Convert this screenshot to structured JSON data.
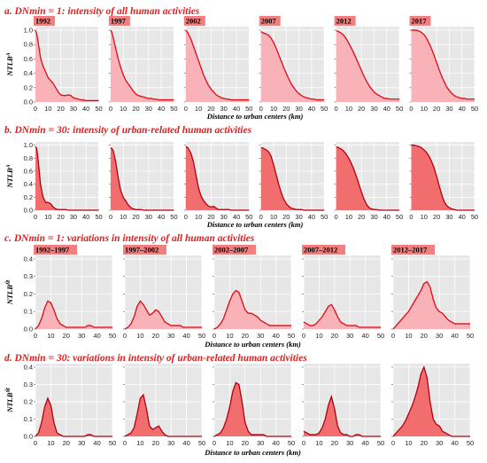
{
  "colors": {
    "accent": "#e0201f",
    "tag_bg": "#f08080",
    "light_fill": "#f9b3b8",
    "dark_fill": "#f26d6d",
    "line": "#dd0a14",
    "dark_line": "#b00010",
    "panel_bg": "#e7e7e7"
  },
  "sections": [
    {
      "title": "a. DNmin = 1: intensity of all human activities",
      "ylabel_main": "NTLB",
      "ylabel_sub": "A",
      "xlabel": "Distance to urban centers (km)",
      "fill": "light",
      "y_ticks": [
        "1.0",
        "0.8",
        "0.6",
        "0.4",
        "0.2",
        "0.0"
      ],
      "x_ticks": [
        "0",
        "10",
        "20",
        "30",
        "40",
        "50"
      ]
    },
    {
      "title": "b. DNmin = 30: intensity of urban-related human activities",
      "ylabel_main": "NTLB",
      "ylabel_sub": "A",
      "xlabel": "Distance to urban centers (km)",
      "fill": "dark",
      "y_ticks": [
        "1.0",
        "0.8",
        "0.6",
        "0.4",
        "0.2",
        "0.0"
      ],
      "x_ticks": [
        "0",
        "10",
        "20",
        "30",
        "40",
        "50"
      ]
    },
    {
      "title": "c. DNmin = 1: variations in intensity of all human activities",
      "ylabel_main": "NTLB",
      "ylabel_sub": "M̃",
      "xlabel": "Distance to urban centers (km)",
      "fill": "light",
      "y_ticks": [
        "0.4",
        "0.3",
        "0.2",
        "0.1",
        "0.0"
      ],
      "x_ticks": [
        "0",
        "10",
        "20",
        "30",
        "40",
        "50"
      ]
    },
    {
      "title": "d. DNmin = 30: variations in intensity of urban-related human activities",
      "ylabel_main": "NTLB",
      "ylabel_sub": "M̃",
      "xlabel": "Distance to urban centers (km)",
      "fill": "dark",
      "y_ticks": [
        "0.4",
        "0.3",
        "0.2",
        "0.1",
        "0.0"
      ],
      "x_ticks": [
        "0",
        "10",
        "20",
        "30",
        "40",
        "50"
      ]
    }
  ],
  "chart_data": [
    {
      "type": "area",
      "section": 0,
      "xlim": [
        0,
        50
      ],
      "ylim": [
        0,
        1.05
      ],
      "x": [
        0,
        1,
        2,
        4,
        6,
        8,
        10,
        12,
        14,
        16,
        18,
        20,
        22,
        24,
        26,
        28,
        30,
        32,
        34,
        36,
        38,
        40,
        42,
        44,
        46,
        48,
        50
      ],
      "series": [
        {
          "name": "1992",
          "values": [
            1.0,
            0.95,
            0.85,
            0.62,
            0.5,
            0.42,
            0.34,
            0.3,
            0.26,
            0.2,
            0.14,
            0.1,
            0.09,
            0.09,
            0.1,
            0.09,
            0.06,
            0.05,
            0.04,
            0.03,
            0.03,
            0.02,
            0.02,
            0.02,
            0.02,
            0.02,
            0.02
          ]
        },
        {
          "name": "1997",
          "values": [
            1.0,
            0.97,
            0.9,
            0.75,
            0.6,
            0.48,
            0.38,
            0.3,
            0.25,
            0.2,
            0.15,
            0.11,
            0.09,
            0.08,
            0.07,
            0.06,
            0.05,
            0.05,
            0.04,
            0.04,
            0.03,
            0.03,
            0.03,
            0.03,
            0.03,
            0.03,
            0.03
          ]
        },
        {
          "name": "2002",
          "values": [
            1.0,
            0.98,
            0.95,
            0.88,
            0.78,
            0.68,
            0.58,
            0.48,
            0.38,
            0.3,
            0.23,
            0.18,
            0.14,
            0.1,
            0.08,
            0.06,
            0.05,
            0.04,
            0.04,
            0.03,
            0.03,
            0.03,
            0.03,
            0.03,
            0.03,
            0.03,
            0.03
          ]
        },
        {
          "name": "2007",
          "values": [
            0.98,
            0.97,
            0.96,
            0.95,
            0.93,
            0.89,
            0.83,
            0.75,
            0.66,
            0.57,
            0.48,
            0.4,
            0.32,
            0.25,
            0.2,
            0.15,
            0.12,
            0.09,
            0.07,
            0.06,
            0.05,
            0.04,
            0.04,
            0.03,
            0.03,
            0.03,
            0.03
          ]
        },
        {
          "name": "2012",
          "values": [
            0.99,
            0.99,
            0.98,
            0.96,
            0.93,
            0.88,
            0.82,
            0.75,
            0.68,
            0.6,
            0.52,
            0.44,
            0.36,
            0.29,
            0.23,
            0.18,
            0.14,
            0.11,
            0.09,
            0.07,
            0.05,
            0.05,
            0.04,
            0.04,
            0.04,
            0.04,
            0.04
          ]
        },
        {
          "name": "2017",
          "values": [
            1.0,
            1.0,
            1.0,
            1.0,
            0.99,
            0.97,
            0.94,
            0.89,
            0.82,
            0.74,
            0.65,
            0.55,
            0.45,
            0.36,
            0.28,
            0.21,
            0.16,
            0.12,
            0.09,
            0.07,
            0.06,
            0.05,
            0.05,
            0.04,
            0.04,
            0.04,
            0.04
          ]
        }
      ]
    },
    {
      "type": "area",
      "section": 1,
      "xlim": [
        0,
        50
      ],
      "ylim": [
        0,
        1.05
      ],
      "x": [
        0,
        1,
        2,
        4,
        6,
        8,
        10,
        12,
        14,
        16,
        18,
        20,
        22,
        24,
        26,
        28,
        30,
        32,
        34,
        36,
        38,
        40,
        42,
        44,
        46,
        48,
        50
      ],
      "series": [
        {
          "name": "1992",
          "values": [
            0.98,
            0.95,
            0.8,
            0.4,
            0.2,
            0.12,
            0.12,
            0.1,
            0.05,
            0.02,
            0.01,
            0.01,
            0.01,
            0.01,
            0.0,
            0.0,
            0.0,
            0.0,
            0.0,
            0.0,
            0.0,
            0.0,
            0.0,
            0.0,
            0.0,
            0.0,
            0.0
          ]
        },
        {
          "name": "1997",
          "values": [
            0.96,
            0.95,
            0.92,
            0.75,
            0.5,
            0.3,
            0.2,
            0.14,
            0.08,
            0.04,
            0.02,
            0.01,
            0.01,
            0.01,
            0.0,
            0.0,
            0.0,
            0.0,
            0.0,
            0.0,
            0.0,
            0.0,
            0.0,
            0.0,
            0.0,
            0.0,
            0.0
          ]
        },
        {
          "name": "2002",
          "values": [
            0.98,
            0.97,
            0.95,
            0.88,
            0.75,
            0.55,
            0.35,
            0.22,
            0.15,
            0.1,
            0.06,
            0.05,
            0.06,
            0.03,
            0.01,
            0.01,
            0.01,
            0.01,
            0.01,
            0.0,
            0.0,
            0.0,
            0.0,
            0.0,
            0.0,
            0.0,
            0.0
          ]
        },
        {
          "name": "2007",
          "values": [
            0.96,
            0.96,
            0.95,
            0.93,
            0.9,
            0.83,
            0.7,
            0.55,
            0.4,
            0.27,
            0.17,
            0.1,
            0.06,
            0.03,
            0.02,
            0.01,
            0.01,
            0.01,
            0.0,
            0.0,
            0.0,
            0.0,
            0.0,
            0.0,
            0.0,
            0.0,
            0.0
          ]
        },
        {
          "name": "2012",
          "values": [
            0.97,
            0.97,
            0.96,
            0.94,
            0.91,
            0.86,
            0.8,
            0.72,
            0.63,
            0.52,
            0.4,
            0.28,
            0.17,
            0.09,
            0.04,
            0.02,
            0.01,
            0.01,
            0.0,
            0.0,
            0.0,
            0.0,
            0.0,
            0.0,
            0.0,
            0.0,
            0.0
          ]
        },
        {
          "name": "2017",
          "values": [
            1.0,
            1.0,
            1.0,
            0.99,
            0.98,
            0.96,
            0.93,
            0.89,
            0.83,
            0.75,
            0.65,
            0.52,
            0.38,
            0.24,
            0.13,
            0.07,
            0.04,
            0.02,
            0.01,
            0.0,
            0.0,
            0.0,
            0.0,
            0.0,
            0.0,
            0.0,
            0.0
          ]
        }
      ]
    },
    {
      "type": "area",
      "section": 2,
      "xlim": [
        0,
        50
      ],
      "ylim": [
        0,
        0.42
      ],
      "x": [
        0,
        2,
        4,
        6,
        8,
        10,
        12,
        14,
        16,
        18,
        20,
        22,
        24,
        26,
        28,
        30,
        32,
        34,
        36,
        38,
        40,
        42,
        44,
        46,
        48,
        50
      ],
      "series": [
        {
          "name": "1992‒1997",
          "values": [
            0.0,
            0.02,
            0.06,
            0.12,
            0.16,
            0.15,
            0.11,
            0.06,
            0.03,
            0.02,
            0.01,
            0.01,
            0.01,
            0.01,
            0.01,
            0.01,
            0.01,
            0.02,
            0.02,
            0.01,
            0.01,
            0.01,
            0.01,
            0.01,
            0.01,
            0.01
          ]
        },
        {
          "name": "1997‒2002",
          "values": [
            0.0,
            0.01,
            0.03,
            0.07,
            0.13,
            0.16,
            0.14,
            0.11,
            0.08,
            0.09,
            0.11,
            0.1,
            0.07,
            0.04,
            0.03,
            0.02,
            0.02,
            0.02,
            0.02,
            0.01,
            0.01,
            0.01,
            0.01,
            0.01,
            0.01,
            0.01
          ]
        },
        {
          "name": "2002‒2007",
          "values": [
            0.0,
            0.01,
            0.03,
            0.06,
            0.11,
            0.16,
            0.2,
            0.22,
            0.21,
            0.16,
            0.11,
            0.09,
            0.09,
            0.08,
            0.07,
            0.05,
            0.04,
            0.03,
            0.02,
            0.02,
            0.02,
            0.02,
            0.02,
            0.02,
            0.02,
            0.02
          ]
        },
        {
          "name": "2007‒2012",
          "values": [
            0.04,
            0.03,
            0.02,
            0.02,
            0.03,
            0.05,
            0.07,
            0.1,
            0.13,
            0.14,
            0.11,
            0.07,
            0.04,
            0.03,
            0.02,
            0.02,
            0.02,
            0.02,
            0.01,
            0.01,
            0.01,
            0.01,
            0.01,
            0.01,
            0.01,
            0.01
          ]
        },
        {
          "name": "2012‒2017",
          "values": [
            0.0,
            0.02,
            0.04,
            0.06,
            0.08,
            0.1,
            0.13,
            0.16,
            0.19,
            0.22,
            0.26,
            0.27,
            0.24,
            0.17,
            0.12,
            0.1,
            0.09,
            0.07,
            0.05,
            0.04,
            0.03,
            0.03,
            0.03,
            0.03,
            0.03,
            0.03
          ]
        }
      ]
    },
    {
      "type": "area",
      "section": 3,
      "xlim": [
        0,
        50
      ],
      "ylim": [
        0,
        0.42
      ],
      "x": [
        0,
        2,
        4,
        6,
        8,
        10,
        12,
        14,
        16,
        18,
        20,
        22,
        24,
        26,
        28,
        30,
        32,
        34,
        36,
        38,
        40,
        42,
        44,
        46,
        48,
        50
      ],
      "series": [
        {
          "name": "1992‒1997",
          "values": [
            0.0,
            0.02,
            0.08,
            0.17,
            0.22,
            0.18,
            0.08,
            0.02,
            0.01,
            0.0,
            0.0,
            0.0,
            0.0,
            0.0,
            0.0,
            0.0,
            0.0,
            0.01,
            0.01,
            0.0,
            0.0,
            0.0,
            0.0,
            0.0,
            0.0,
            0.0
          ]
        },
        {
          "name": "1997‒2002",
          "values": [
            0.0,
            0.01,
            0.02,
            0.05,
            0.13,
            0.22,
            0.24,
            0.16,
            0.06,
            0.04,
            0.05,
            0.06,
            0.03,
            0.01,
            0.0,
            0.0,
            0.0,
            0.0,
            0.0,
            0.0,
            0.0,
            0.0,
            0.0,
            0.0,
            0.0,
            0.0
          ]
        },
        {
          "name": "2002‒2007",
          "values": [
            0.0,
            0.01,
            0.02,
            0.05,
            0.1,
            0.17,
            0.26,
            0.31,
            0.3,
            0.2,
            0.08,
            0.03,
            0.01,
            0.01,
            0.01,
            0.01,
            0.01,
            0.0,
            0.0,
            0.0,
            0.0,
            0.0,
            0.0,
            0.0,
            0.0,
            0.0
          ]
        },
        {
          "name": "2007‒2012",
          "values": [
            0.03,
            0.02,
            0.01,
            0.01,
            0.01,
            0.02,
            0.05,
            0.1,
            0.18,
            0.23,
            0.16,
            0.06,
            0.02,
            0.01,
            0.01,
            0.0,
            0.0,
            0.01,
            0.01,
            0.0,
            0.0,
            0.0,
            0.0,
            0.0,
            0.0,
            0.0
          ]
        },
        {
          "name": "2012‒2017",
          "values": [
            0.0,
            0.02,
            0.04,
            0.06,
            0.09,
            0.13,
            0.17,
            0.22,
            0.28,
            0.36,
            0.4,
            0.34,
            0.2,
            0.1,
            0.07,
            0.06,
            0.03,
            0.02,
            0.01,
            0.0,
            0.0,
            0.0,
            0.0,
            0.0,
            0.0,
            0.0
          ]
        }
      ]
    }
  ]
}
